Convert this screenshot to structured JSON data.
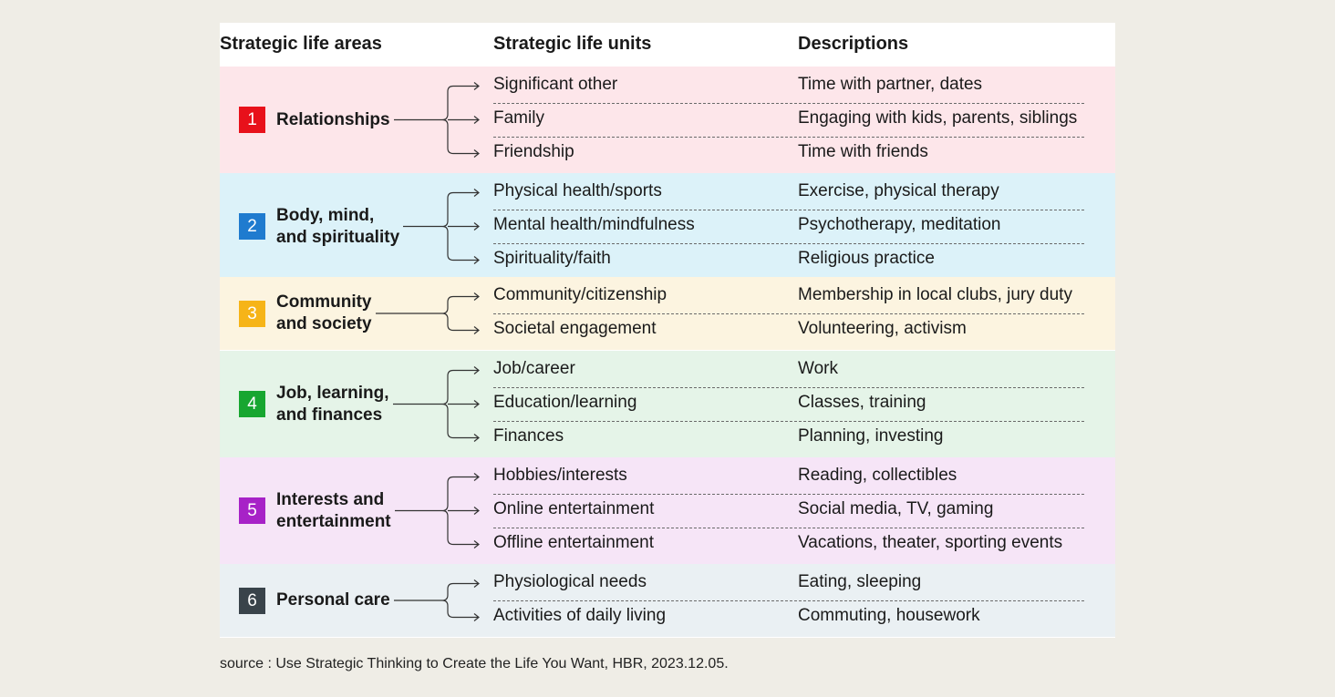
{
  "headers": {
    "areas": "Strategic life areas",
    "units": "Strategic life units",
    "descriptions": "Descriptions"
  },
  "groups": [
    {
      "number": "1",
      "label": "Relationships",
      "badge_color": "#e8111b",
      "bg_color": "#fde6ea",
      "rows": [
        {
          "unit": "Significant other",
          "desc": "Time with partner, dates"
        },
        {
          "unit": "Family",
          "desc": "Engaging with kids, parents, siblings"
        },
        {
          "unit": "Friendship",
          "desc": "Time with friends"
        }
      ]
    },
    {
      "number": "2",
      "label": "Body, mind,\nand spirituality",
      "badge_color": "#1f7bcf",
      "bg_color": "#dcf2f9",
      "rows": [
        {
          "unit": "Physical health/sports",
          "desc": "Exercise, physical therapy"
        },
        {
          "unit": "Mental health/mindfulness",
          "desc": "Psychotherapy, meditation"
        },
        {
          "unit": "Spirituality/faith",
          "desc": "Religious practice"
        }
      ]
    },
    {
      "number": "3",
      "label": "Community\nand society",
      "badge_color": "#f6b418",
      "bg_color": "#fcf4e0",
      "rows": [
        {
          "unit": "Community/citizenship",
          "desc": "Membership in local clubs, jury duty"
        },
        {
          "unit": "Societal engagement",
          "desc": "Volunteering, activism"
        }
      ]
    },
    {
      "number": "4",
      "label": "Job, learning,\nand finances",
      "badge_color": "#17a630",
      "bg_color": "#e5f4e8",
      "rows": [
        {
          "unit": "Job/career",
          "desc": "Work"
        },
        {
          "unit": "Education/learning",
          "desc": "Classes, training"
        },
        {
          "unit": "Finances",
          "desc": "Planning, investing"
        }
      ]
    },
    {
      "number": "5",
      "label": "Interests and\nentertainment",
      "badge_color": "#a722c7",
      "bg_color": "#f6e5f7",
      "rows": [
        {
          "unit": "Hobbies/interests",
          "desc": "Reading, collectibles"
        },
        {
          "unit": "Online entertainment",
          "desc": "Social media, TV, gaming"
        },
        {
          "unit": "Offline entertainment",
          "desc": "Vacations, theater, sporting events"
        }
      ]
    },
    {
      "number": "6",
      "label": "Personal care",
      "badge_color": "#39434a",
      "bg_color": "#eaf0f3",
      "rows": [
        {
          "unit": "Physiological needs",
          "desc": "Eating, sleeping"
        },
        {
          "unit": "Activities of daily living",
          "desc": "Commuting, housework"
        }
      ]
    }
  ],
  "source": "source : Use Strategic Thinking to Create the Life You Want, HBR, 2023.12.05."
}
